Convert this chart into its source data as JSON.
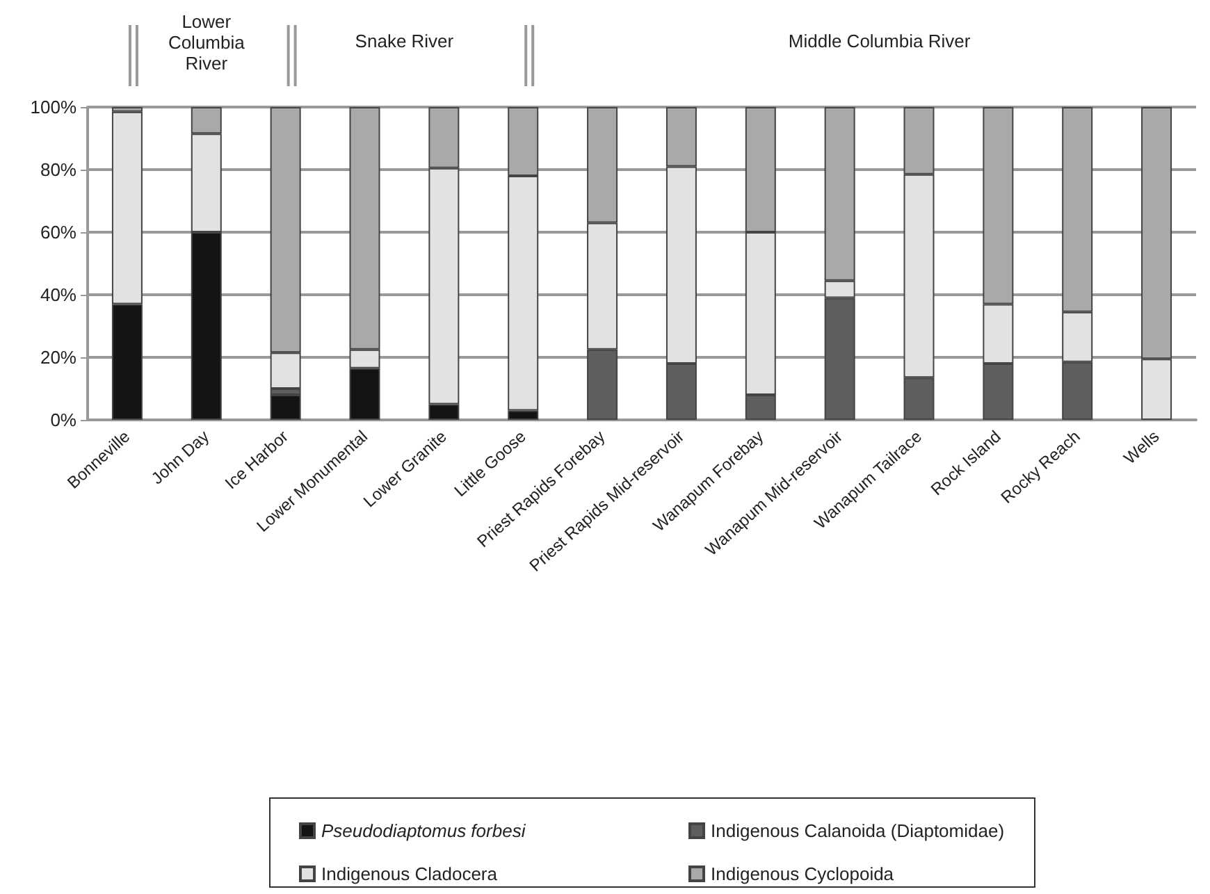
{
  "chart_data": {
    "type": "bar",
    "stacked": true,
    "categories": [
      "Bonneville",
      "John Day",
      "Ice Harbor",
      "Lower Monumental",
      "Lower Granite",
      "Little Goose",
      "Priest Rapids Forebay",
      "Priest Rapids Mid-reservoir",
      "Wanapum Forebay",
      "Wanapum Mid-reservoir",
      "Wanapum Tailrace",
      "Rock Island",
      "Rocky Reach",
      "Wells"
    ],
    "series": [
      {
        "name": "Pseudodiaptomus forbesi",
        "color": "#141414",
        "values": [
          37,
          60,
          8,
          16.5,
          5,
          3,
          null,
          null,
          null,
          null,
          null,
          null,
          null,
          null
        ]
      },
      {
        "name": "Indigenous Calanoida (Diaptomidae)",
        "color": "#5e5e5e",
        "values": [
          null,
          null,
          2,
          null,
          null,
          null,
          22.5,
          18,
          8,
          39,
          13.5,
          18,
          18.5,
          null
        ]
      },
      {
        "name": "Indigenous Cladocera",
        "color": "#e2e2e2",
        "values": [
          61.5,
          31.5,
          11.5,
          6,
          75.5,
          75,
          40.5,
          63,
          52,
          5.5,
          65,
          19,
          16,
          19.5
        ]
      },
      {
        "name": "Indigenous Cyclopoida",
        "color": "#a9a9a9",
        "values": [
          1.5,
          8.5,
          78.5,
          77.5,
          19.5,
          22,
          37,
          19,
          40,
          55.5,
          21.5,
          63,
          65.5,
          80.5
        ]
      }
    ],
    "ylim": [
      0,
      100
    ],
    "yticks": [
      {
        "value": 0,
        "label": "0%"
      },
      {
        "value": 20,
        "label": "20%"
      },
      {
        "value": 40,
        "label": "40%"
      },
      {
        "value": 60,
        "label": "60%"
      },
      {
        "value": 80,
        "label": "80%"
      },
      {
        "value": 100,
        "label": "100%"
      }
    ],
    "grid": "y",
    "legend": "bottom",
    "annotations": [
      "Lower Columbia River",
      "Snake River",
      "Middle Columbia River"
    ]
  }
}
